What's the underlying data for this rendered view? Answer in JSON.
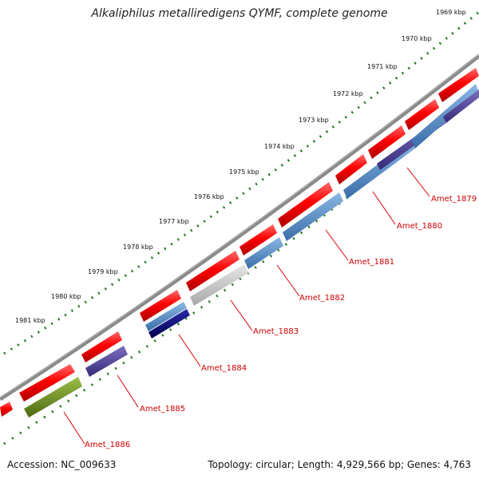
{
  "title": "Alkaliphilus metalliredigens QYMF, complete genome",
  "accession": "Accession: NC_009633",
  "summary": "Topology: circular; Length: 4,929,566 bp; Genes: 4,763",
  "kbp_labels": [
    "1969 kbp",
    "1970 kbp",
    "1971 kbp",
    "1972 kbp",
    "1973 kbp",
    "1974 kbp",
    "1975 kbp",
    "1976 kbp",
    "1977 kbp",
    "1978 kbp",
    "1979 kbp",
    "1980 kbp",
    "1981 kbp"
  ],
  "genes": [
    "Amet_1879",
    "Amet_1880",
    "Amet_1881",
    "Amet_1882",
    "Amet_1883",
    "Amet_1884",
    "Amet_1885",
    "Amet_1886"
  ],
  "colors": {
    "backbone": "#8a8a8a",
    "forward": "#ff0000",
    "tick": "#1a7a1a",
    "label": "#cc0000",
    "steel_blue": "#4a86c0",
    "slate": "#4a3f8f",
    "grey": "#c8c8c8",
    "navy": "#0a0a7a",
    "olive": "#6e8f20"
  }
}
